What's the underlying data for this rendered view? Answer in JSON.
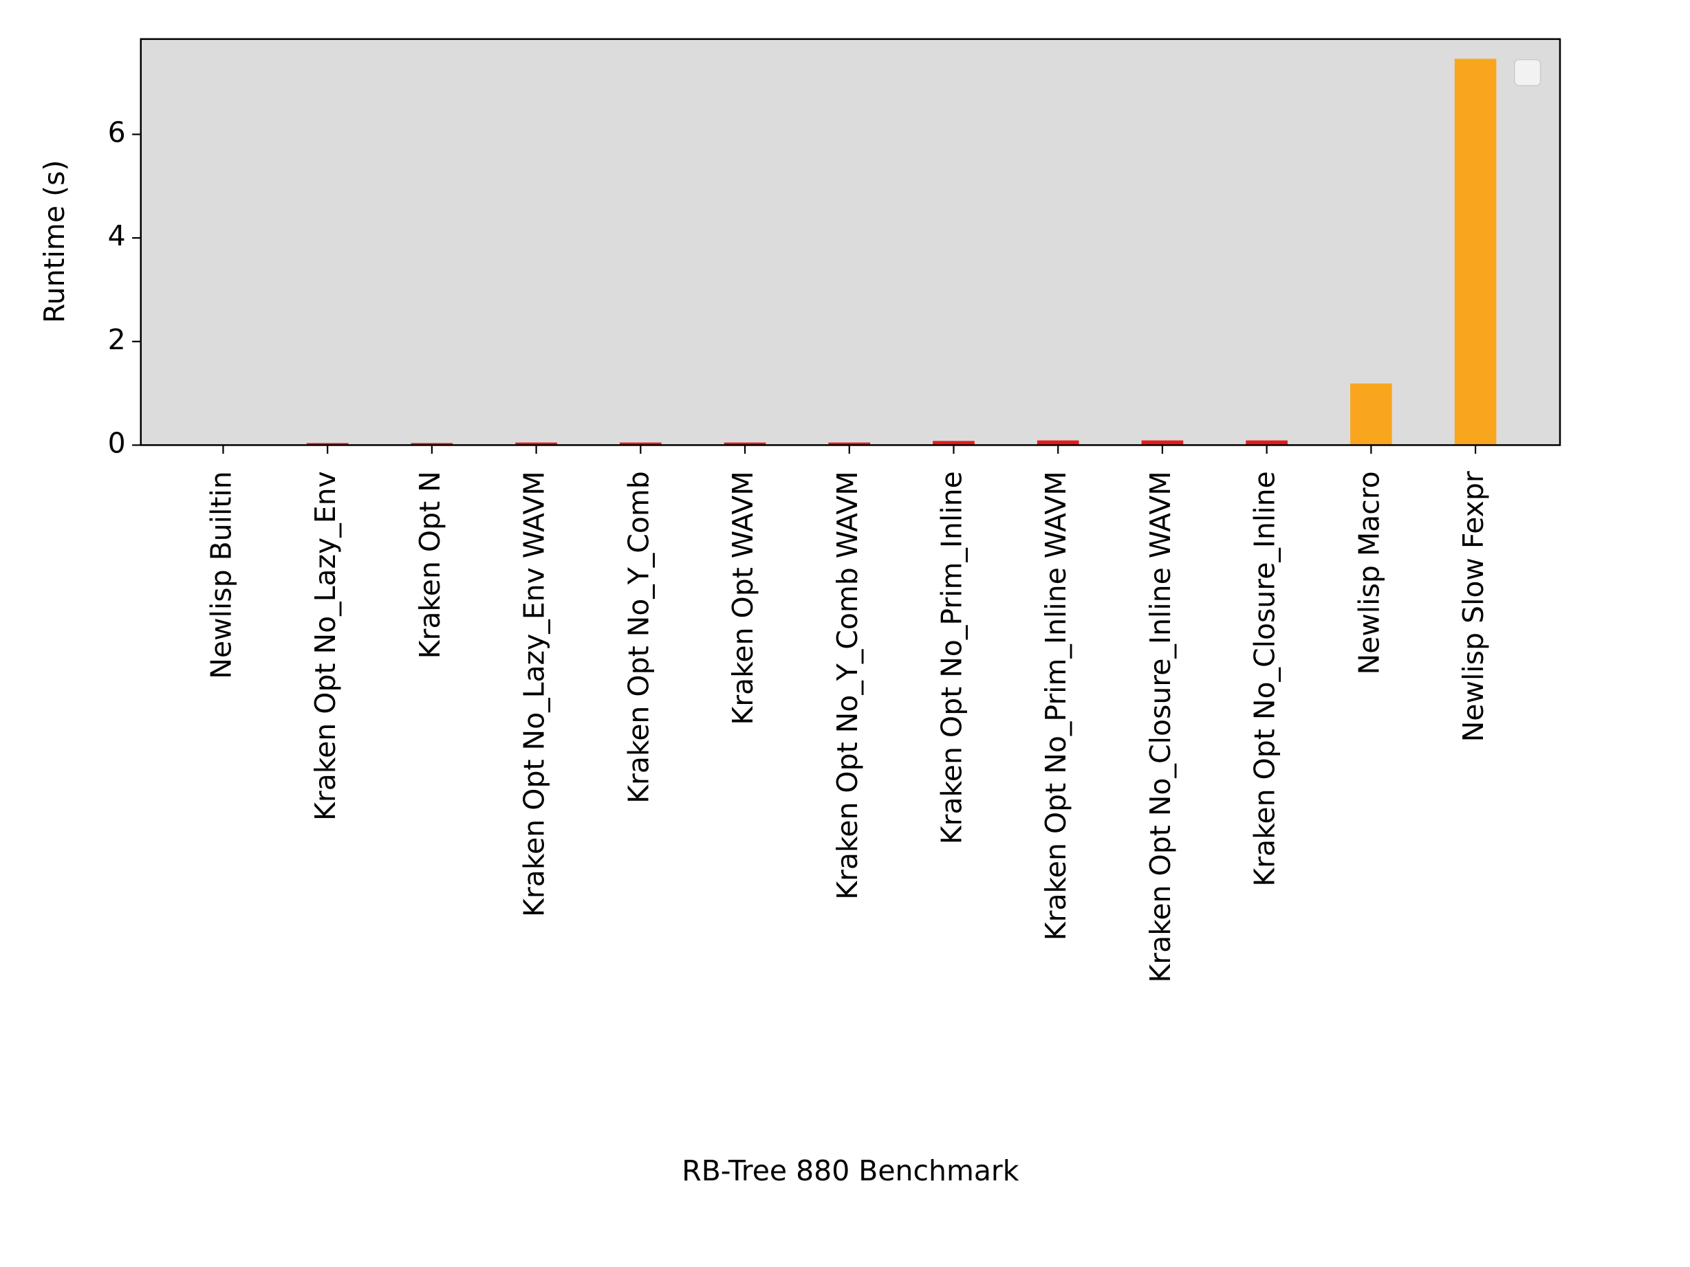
{
  "chart_data": {
    "type": "bar",
    "x_label": "RB-Tree 880 Benchmark",
    "y_label": "Runtime (s)",
    "categories": [
      "Newlisp Builtin",
      "Kraken Opt No_Lazy_Env",
      "Kraken Opt N",
      "Kraken Opt No_Lazy_Env WAVM",
      "Kraken Opt No_Y_Comb",
      "Kraken Opt WAVM",
      "Kraken Opt No_Y_Comb WAVM",
      "Kraken Opt No_Prim_Inline",
      "Kraken Opt No_Prim_Inline WAVM",
      "Kraken Opt No_Closure_Inline WAVM",
      "Kraken Opt No_Closure_Inline",
      "Newlisp Macro",
      "Newlisp Slow Fexpr"
    ],
    "values": [
      0.01,
      0.04,
      0.04,
      0.05,
      0.05,
      0.05,
      0.05,
      0.08,
      0.09,
      0.09,
      0.09,
      1.19,
      7.46
    ],
    "colors": [
      "#f9a61e",
      "#e8191b",
      "#e8191b",
      "#e8191b",
      "#e8191b",
      "#e8191b",
      "#e8191b",
      "#e8191b",
      "#e8191b",
      "#e8191b",
      "#e8191b",
      "#f9a61e",
      "#f9a61e"
    ],
    "ylim": [
      0,
      7.84
    ],
    "yticks": [
      0,
      2,
      4,
      6
    ],
    "plot_background": "#dcdcdc"
  }
}
